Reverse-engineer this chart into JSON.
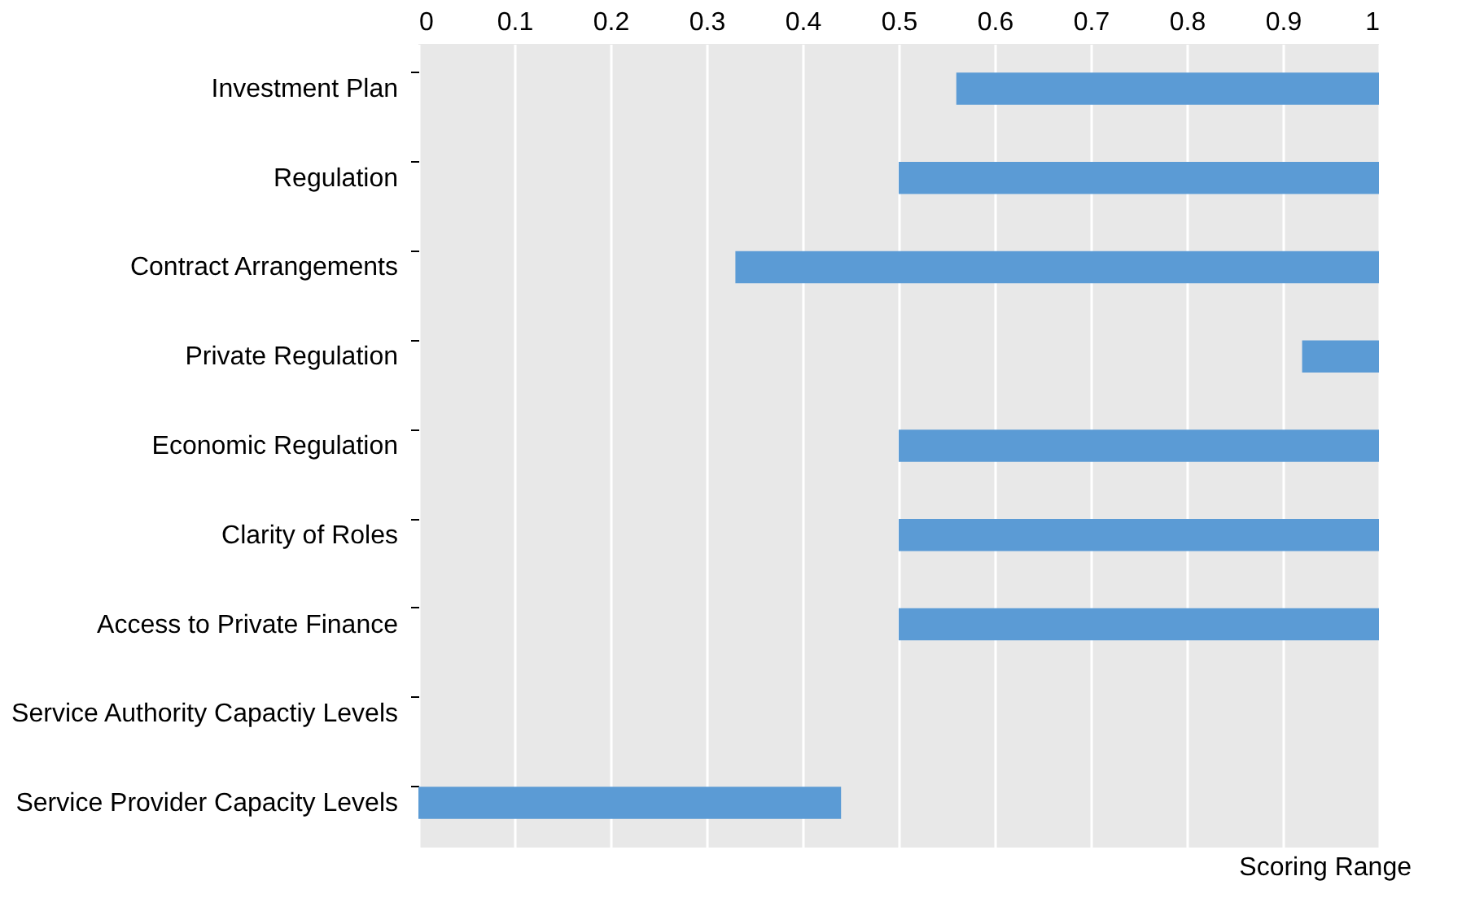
{
  "chart_data": {
    "type": "bar",
    "orientation": "horizontal",
    "xlabel": "Scoring Range",
    "categories": [
      "Investment Plan",
      "Regulation",
      "Contract Arrangements",
      "Private Regulation",
      "Economic Regulation",
      "Clarity of Roles",
      "Access to Private Finance",
      "Service Authority Capactiy Levels",
      "Service Provider Capacity Levels"
    ],
    "base": [
      0.56,
      0.5,
      0.33,
      0.92,
      0.5,
      0.5,
      0.5,
      null,
      0
    ],
    "values": [
      0.44,
      0.5,
      0.67,
      0.08,
      0.5,
      0.5,
      0.5,
      null,
      0.44
    ],
    "color": "#5b9bd5",
    "xlim": [
      0,
      1
    ],
    "xticks": [
      0,
      0.1,
      0.2,
      0.3,
      0.4,
      0.5,
      0.6,
      0.7,
      0.8,
      0.9,
      1
    ],
    "grid": "x"
  }
}
